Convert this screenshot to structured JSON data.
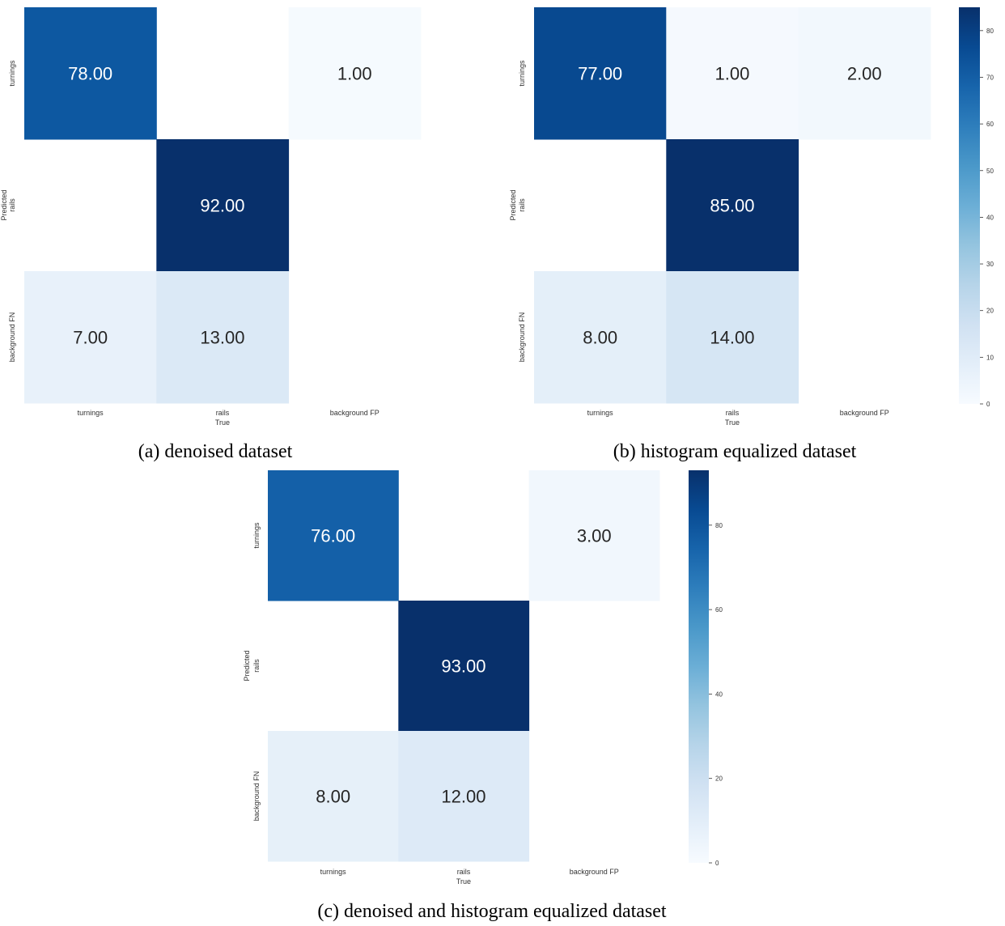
{
  "chart_data": [
    {
      "type": "heatmap",
      "caption": "(a) denoised dataset",
      "xlabel": "True",
      "ylabel": "Predicted",
      "x_categories": [
        "turnings",
        "rails",
        "background FP"
      ],
      "y_categories": [
        "turnings",
        "rails",
        "background FN"
      ],
      "values": [
        [
          78,
          null,
          1
        ],
        [
          null,
          92,
          null
        ],
        [
          7,
          13,
          null
        ]
      ],
      "cell_labels": [
        [
          "78.00",
          "",
          "1.00"
        ],
        [
          "",
          "92.00",
          ""
        ],
        [
          "7.00",
          "13.00",
          ""
        ]
      ],
      "colormap": "Blues",
      "vmin": 0,
      "vmax": 92,
      "colorbar": null
    },
    {
      "type": "heatmap",
      "caption": "(b) histogram equalized dataset",
      "xlabel": "True",
      "ylabel": "Predicted",
      "x_categories": [
        "turnings",
        "rails",
        "background FP"
      ],
      "y_categories": [
        "turnings",
        "rails",
        "background FN"
      ],
      "values": [
        [
          77,
          1,
          2
        ],
        [
          null,
          85,
          null
        ],
        [
          8,
          14,
          null
        ]
      ],
      "cell_labels": [
        [
          "77.00",
          "1.00",
          "2.00"
        ],
        [
          "",
          "85.00",
          ""
        ],
        [
          "8.00",
          "14.00",
          ""
        ]
      ],
      "colormap": "Blues",
      "vmin": 0,
      "vmax": 85,
      "colorbar": {
        "ticks": [
          0,
          10,
          20,
          30,
          40,
          50,
          60,
          70,
          80
        ]
      }
    },
    {
      "type": "heatmap",
      "caption": "(c) denoised and histogram equalized dataset",
      "xlabel": "True",
      "ylabel": "Predicted",
      "x_categories": [
        "turnings",
        "rails",
        "background FP"
      ],
      "y_categories": [
        "turnings",
        "rails",
        "background FN"
      ],
      "values": [
        [
          76,
          null,
          3
        ],
        [
          null,
          93,
          null
        ],
        [
          8,
          12,
          null
        ]
      ],
      "cell_labels": [
        [
          "76.00",
          "",
          "3.00"
        ],
        [
          "",
          "93.00",
          ""
        ],
        [
          "8.00",
          "12.00",
          ""
        ]
      ],
      "colormap": "Blues",
      "vmin": 0,
      "vmax": 93,
      "colorbar": {
        "ticks": [
          0,
          20,
          40,
          60,
          80
        ]
      }
    }
  ]
}
